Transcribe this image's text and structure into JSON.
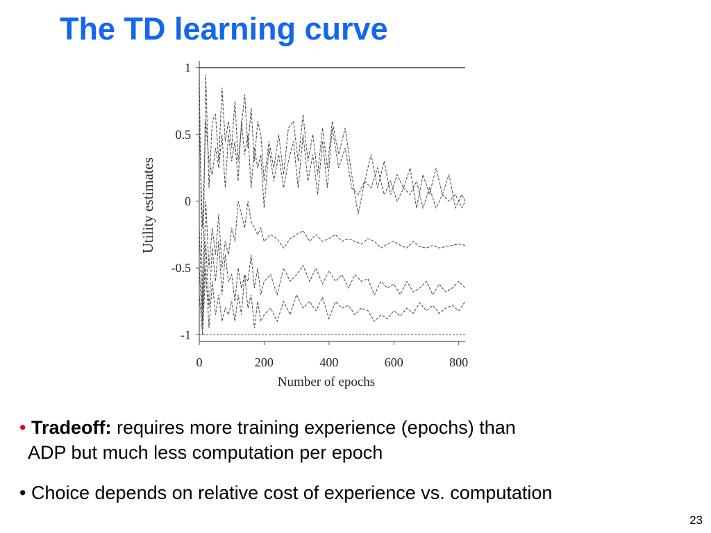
{
  "slide": {
    "title": "The TD learning curve",
    "page_number": "23"
  },
  "bullets": [
    {
      "marker": "•",
      "marker_color": "#e3001b",
      "bold_lead": "Tradeoff:",
      "text_line1": " requires more training experience (epochs) than",
      "text_line2": "ADP but much less computation per epoch"
    },
    {
      "marker": "•",
      "marker_color": "#000000",
      "text": " Choice depends on relative cost of experience vs. computation"
    }
  ],
  "colors": {
    "title": "#1466f0",
    "bullet_marker": "#e3001b",
    "series": "#444444"
  },
  "chart_data": {
    "type": "line",
    "xlabel": "Number of epochs",
    "ylabel": "Utility estimates",
    "xlim": [
      0,
      820
    ],
    "ylim": [
      -1.05,
      1.05
    ],
    "xticks": [
      "0",
      "200",
      "400",
      "600",
      "800"
    ],
    "xtick_values": [
      0,
      200,
      400,
      600,
      800
    ],
    "yticks": [
      "1",
      "0.5",
      "0",
      "-0.5",
      "-1"
    ],
    "ytick_values": [
      1,
      0.5,
      0,
      -0.5,
      -1
    ],
    "grid": false,
    "series": [
      {
        "style": "solid",
        "x": [
          0,
          820
        ],
        "y": [
          1.0,
          1.0
        ]
      },
      {
        "style": "dashed",
        "x": [
          0,
          820
        ],
        "y": [
          -1.0,
          -1.0
        ]
      },
      {
        "style": "dashed",
        "x": [
          0,
          10,
          20,
          30,
          40,
          50,
          60,
          70,
          80,
          90,
          100,
          110,
          120,
          130,
          140,
          150,
          160,
          170,
          180,
          190,
          200,
          215,
          230,
          245,
          260,
          275,
          290,
          305,
          320,
          335,
          350,
          365,
          380,
          395,
          410,
          430,
          450,
          470,
          490,
          510,
          530,
          550,
          570,
          590,
          610,
          630,
          650,
          670,
          690,
          710,
          730,
          750,
          770,
          790,
          810,
          820
        ],
        "y": [
          0.95,
          -0.8,
          0.95,
          0.1,
          0.6,
          0.65,
          0.3,
          0.85,
          0.45,
          0.6,
          0.4,
          0.75,
          0.3,
          0.55,
          0.8,
          0.4,
          0.7,
          0.3,
          0.6,
          0.5,
          0.15,
          0.45,
          0.25,
          0.5,
          0.2,
          0.55,
          0.6,
          0.3,
          0.65,
          0.3,
          0.5,
          0.2,
          0.55,
          0.25,
          0.6,
          0.35,
          0.55,
          0.2,
          -0.1,
          0.15,
          0.35,
          0.1,
          0.3,
          0.05,
          0.2,
          0.1,
          0.25,
          -0.05,
          0.2,
          0.05,
          0.25,
          0.05,
          0.2,
          -0.05,
          0.05,
          0.0
        ]
      },
      {
        "style": "dashed",
        "x": [
          0,
          10,
          20,
          30,
          40,
          50,
          60,
          70,
          80,
          90,
          100,
          110,
          120,
          130,
          140,
          150,
          160,
          170,
          180,
          190,
          200,
          215,
          230,
          245,
          260,
          275,
          290,
          305,
          320,
          335,
          350,
          365,
          380,
          395,
          410,
          430,
          450,
          470,
          490,
          510,
          530,
          550,
          570,
          590,
          610,
          630,
          650,
          670,
          690,
          710,
          730,
          750,
          770,
          790,
          810,
          820
        ],
        "y": [
          0.55,
          -0.2,
          0.6,
          0.3,
          0.2,
          0.4,
          0.25,
          0.5,
          0.1,
          0.5,
          0.3,
          0.45,
          0.15,
          0.6,
          0.35,
          0.5,
          0.1,
          0.4,
          0.25,
          0.35,
          -0.05,
          0.4,
          0.15,
          0.35,
          0.1,
          0.3,
          0.45,
          0.1,
          0.5,
          0.15,
          0.35,
          0.05,
          0.45,
          0.1,
          0.55,
          0.25,
          0.4,
          0.1,
          0.05,
          0.15,
          0.1,
          0.25,
          0.05,
          0.15,
          0.0,
          0.1,
          0.05,
          0.15,
          -0.05,
          0.1,
          -0.05,
          0.05,
          0.0,
          0.05,
          -0.05,
          0.0
        ]
      },
      {
        "style": "dashed",
        "x": [
          0,
          10,
          20,
          30,
          40,
          50,
          60,
          70,
          80,
          90,
          100,
          110,
          120,
          130,
          140,
          150,
          160,
          170,
          180,
          190,
          200,
          220,
          240,
          260,
          280,
          300,
          320,
          340,
          360,
          380,
          400,
          420,
          440,
          460,
          480,
          500,
          520,
          540,
          560,
          580,
          600,
          620,
          640,
          660,
          680,
          700,
          720,
          740,
          760,
          780,
          800,
          820
        ],
        "y": [
          -0.2,
          -0.9,
          0.0,
          -0.5,
          -0.2,
          -0.4,
          -0.1,
          -0.5,
          -0.3,
          -0.4,
          -0.2,
          -0.3,
          0.0,
          -0.1,
          -0.2,
          0.0,
          -0.15,
          -0.2,
          -0.25,
          -0.2,
          -0.3,
          -0.25,
          -0.28,
          -0.35,
          -0.28,
          -0.25,
          -0.22,
          -0.3,
          -0.25,
          -0.3,
          -0.28,
          -0.25,
          -0.3,
          -0.28,
          -0.3,
          -0.32,
          -0.28,
          -0.3,
          -0.35,
          -0.32,
          -0.3,
          -0.33,
          -0.35,
          -0.3,
          -0.34,
          -0.35,
          -0.33,
          -0.35,
          -0.34,
          -0.33,
          -0.32,
          -0.33
        ]
      },
      {
        "style": "dashed",
        "x": [
          0,
          10,
          20,
          30,
          40,
          50,
          60,
          70,
          80,
          90,
          100,
          110,
          120,
          130,
          140,
          150,
          160,
          170,
          180,
          190,
          200,
          220,
          240,
          260,
          280,
          300,
          320,
          340,
          360,
          380,
          400,
          420,
          440,
          460,
          480,
          500,
          520,
          540,
          560,
          580,
          600,
          620,
          640,
          660,
          680,
          700,
          720,
          740,
          760,
          780,
          800,
          820
        ],
        "y": [
          -0.5,
          -0.95,
          -0.3,
          -0.8,
          -0.35,
          -0.6,
          -0.3,
          -0.7,
          -0.4,
          -0.6,
          -0.55,
          -0.75,
          -0.5,
          -0.65,
          -0.55,
          -0.6,
          -0.4,
          -0.65,
          -0.5,
          -0.7,
          -0.6,
          -0.55,
          -0.7,
          -0.5,
          -0.6,
          -0.55,
          -0.48,
          -0.6,
          -0.5,
          -0.62,
          -0.52,
          -0.6,
          -0.55,
          -0.65,
          -0.55,
          -0.6,
          -0.58,
          -0.7,
          -0.6,
          -0.65,
          -0.62,
          -0.7,
          -0.6,
          -0.68,
          -0.65,
          -0.6,
          -0.7,
          -0.62,
          -0.68,
          -0.65,
          -0.6,
          -0.65
        ]
      },
      {
        "style": "dashed",
        "x": [
          0,
          10,
          20,
          30,
          40,
          50,
          60,
          70,
          80,
          90,
          100,
          110,
          120,
          130,
          140,
          150,
          160,
          170,
          180,
          190,
          200,
          220,
          240,
          260,
          280,
          300,
          320,
          340,
          360,
          380,
          400,
          420,
          440,
          460,
          480,
          500,
          520,
          540,
          560,
          580,
          600,
          620,
          640,
          660,
          680,
          700,
          720,
          740,
          760,
          780,
          800,
          820
        ],
        "y": [
          -0.7,
          -1.0,
          -0.5,
          -0.95,
          -0.6,
          -0.85,
          -0.7,
          -0.9,
          -0.8,
          -0.85,
          -0.75,
          -0.9,
          -0.7,
          -0.85,
          -0.55,
          -0.8,
          -0.7,
          -0.95,
          -0.75,
          -0.9,
          -0.85,
          -0.8,
          -0.9,
          -0.75,
          -0.85,
          -0.7,
          -0.8,
          -0.75,
          -0.82,
          -0.72,
          -0.88,
          -0.75,
          -0.8,
          -0.78,
          -0.85,
          -0.8,
          -0.82,
          -0.9,
          -0.85,
          -0.88,
          -0.82,
          -0.86,
          -0.8,
          -0.84,
          -0.76,
          -0.82,
          -0.78,
          -0.84,
          -0.8,
          -0.78,
          -0.82,
          -0.75
        ]
      }
    ]
  }
}
